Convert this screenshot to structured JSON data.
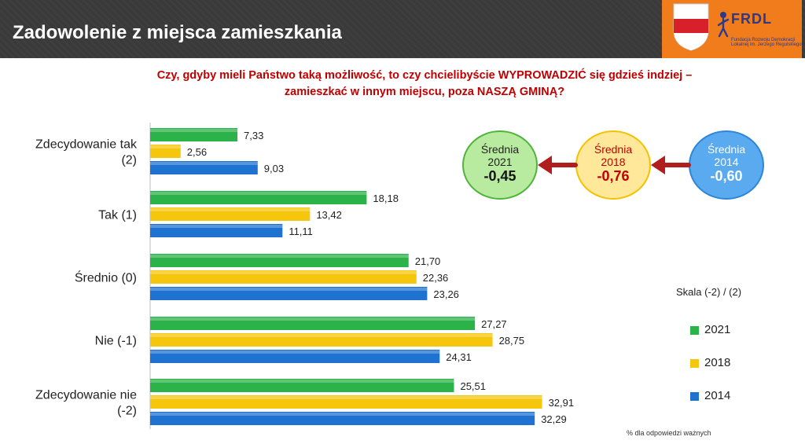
{
  "header": {
    "title": "Zadowolenie z miejsca zamieszkania"
  },
  "logo": {
    "text": "FRDL",
    "subtext": "Fundacja Rozwoju Demokracji Lokalnej im. Jerzego Regulskiego"
  },
  "question": {
    "line1": "Czy, gdyby mieli Państwo taką możliwość, to czy chcielibyście WYPROWADZIĆ się gdzieś indziej –",
    "line2": "zamieszkać w innym miejscu, poza NASZĄ GMINĄ?"
  },
  "averages": [
    {
      "label": "Średnia",
      "year": "2021",
      "value": "-0,45"
    },
    {
      "label": "Średnia",
      "year": "2018",
      "value": "-0,76"
    },
    {
      "label": "Średnia",
      "year": "2014",
      "value": "-0,60"
    }
  ],
  "legend": {
    "scale": "Skala (-2) / (2)",
    "items": [
      "2021",
      "2018",
      "2014"
    ]
  },
  "footnote": "% dla odpowiedzi ważnych",
  "colors": {
    "2021": "#2bb34a",
    "2018": "#f6c60c",
    "2014": "#1f72d0",
    "question": "#c00000",
    "arrow": "#b01e1e"
  },
  "chart_data": {
    "type": "bar",
    "orientation": "horizontal",
    "categories": [
      [
        "Zdecydowanie tak",
        "(2)"
      ],
      [
        "Tak (1)"
      ],
      [
        "Średnio (0)"
      ],
      [
        "Nie (-1)"
      ],
      [
        "Zdecydowanie nie",
        "(-2)"
      ]
    ],
    "series": [
      {
        "name": "2021",
        "values": [
          7.33,
          18.18,
          21.7,
          27.27,
          25.51
        ],
        "labels": [
          "7,33",
          "18,18",
          "21,70",
          "27,27",
          "25,51"
        ]
      },
      {
        "name": "2018",
        "values": [
          2.56,
          13.42,
          22.36,
          28.75,
          32.91
        ],
        "labels": [
          "2,56",
          "13,42",
          "22,36",
          "28,75",
          "32,91"
        ]
      },
      {
        "name": "2014",
        "values": [
          9.03,
          11.11,
          23.26,
          24.31,
          32.29
        ],
        "labels": [
          "9,03",
          "11,11",
          "23,26",
          "24,31",
          "32,29"
        ]
      }
    ],
    "xlim": [
      0,
      35
    ],
    "grid": false
  }
}
